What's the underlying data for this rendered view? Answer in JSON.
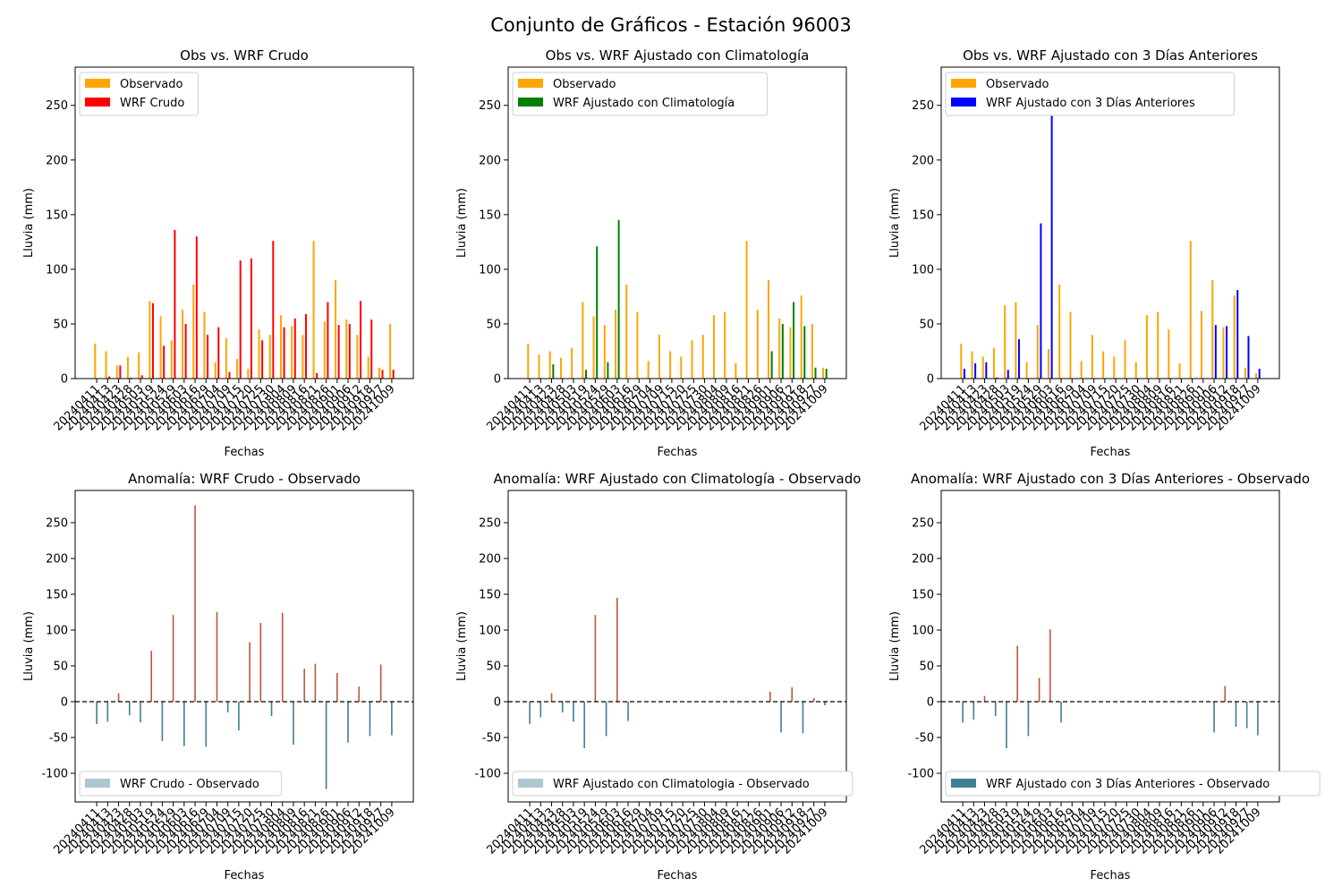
{
  "figure": {
    "title": "Conjunto de Gráficos - Estación 96003"
  },
  "colors": {
    "observed": "#FFA500",
    "wrf_raw": "#FF0000",
    "wrf_clim": "#008000",
    "wrf_3d": "#0000FF",
    "anom_pos": "#C0553A",
    "anom_neg": "#3F7F93",
    "anom_legend_light": "#AEC7D0",
    "anom_legend_dark": "#3F7F93"
  },
  "date_ticks": [
    "20240411",
    "20240413",
    "20240423",
    "20240428",
    "20240503",
    "20240519",
    "20240524",
    "20240529",
    "20240603",
    "20240616",
    "20240629",
    "20240704",
    "20240709",
    "20240715",
    "20240720",
    "20240725",
    "20240730",
    "20240804",
    "20240809",
    "20240816",
    "20240821",
    "20240826",
    "20240901",
    "20240906",
    "20240912",
    "20240918",
    "20240927",
    "20241009"
  ],
  "chart_data": [
    {
      "type": "bar",
      "title": "Obs vs. WRF Crudo",
      "xlabel": "Fechas",
      "ylabel": "Lluvia (mm)",
      "ylim": [
        0,
        285
      ],
      "yticks": [
        0,
        50,
        100,
        150,
        200,
        250
      ],
      "legend_position": "top-left",
      "x": [
        "20240411",
        "20240413",
        "20240423",
        "20240428",
        "20240503",
        "20240519",
        "20240524",
        "20240529",
        "20240603",
        "20240616",
        "20240629",
        "20240704",
        "20240709",
        "20240715",
        "20240720",
        "20240725",
        "20240730",
        "20240804",
        "20240809",
        "20240816",
        "20240821",
        "20240826",
        "20240901",
        "20240906",
        "20240912",
        "20240918",
        "20240927",
        "20241009"
      ],
      "series": [
        {
          "name": "Observado",
          "color_key": "observed",
          "values": [
            32,
            25,
            12,
            20,
            24,
            71,
            57,
            35,
            63,
            86,
            61,
            15,
            37,
            18,
            9,
            45,
            40,
            58,
            48,
            40,
            126,
            52,
            90,
            54,
            40,
            20,
            10,
            50
          ]
        },
        {
          "name": "WRF Crudo",
          "color_key": "wrf_raw",
          "values": [
            0,
            2,
            12,
            1,
            3,
            69,
            30,
            136,
            50,
            130,
            40,
            47,
            6,
            108,
            110,
            35,
            126,
            47,
            55,
            59,
            5,
            70,
            49,
            50,
            71,
            54,
            8,
            8
          ]
        }
      ]
    },
    {
      "type": "bar",
      "title": "Obs vs. WRF Ajustado con Climatología",
      "xlabel": "Fechas",
      "ylabel": "Lluvia (mm)",
      "ylim": [
        0,
        285
      ],
      "yticks": [
        0,
        50,
        100,
        150,
        200,
        250
      ],
      "legend_position": "top-left",
      "x": [
        "20240411",
        "20240413",
        "20240423",
        "20240428",
        "20240503",
        "20240519",
        "20240524",
        "20240529",
        "20240603",
        "20240616",
        "20240629",
        "20240704",
        "20240709",
        "20240715",
        "20240720",
        "20240725",
        "20240730",
        "20240804",
        "20240809",
        "20240816",
        "20240821",
        "20240826",
        "20240901",
        "20240906",
        "20240912",
        "20240918",
        "20240927",
        "20241009"
      ],
      "series": [
        {
          "name": "Observado",
          "color_key": "observed",
          "values": [
            32,
            22,
            25,
            19,
            28,
            70,
            57,
            49,
            63,
            86,
            61,
            16,
            40,
            25,
            20,
            35,
            40,
            58,
            61,
            14,
            126,
            63,
            90,
            55,
            47,
            76,
            50,
            10
          ]
        },
        {
          "name": "WRF Ajustado con Climatología",
          "color_key": "wrf_clim",
          "values": [
            0,
            0,
            13,
            0,
            0,
            8,
            121,
            15,
            145,
            0,
            0,
            0,
            0,
            0,
            0,
            0,
            0,
            0,
            0,
            0,
            0,
            0,
            25,
            50,
            70,
            48,
            10,
            9
          ]
        }
      ]
    },
    {
      "type": "bar",
      "title": "Obs vs. WRF Ajustado con 3 Días Anteriores",
      "xlabel": "Fechas",
      "ylabel": "Lluvia (mm)",
      "ylim": [
        0,
        285
      ],
      "yticks": [
        0,
        50,
        100,
        150,
        200,
        250
      ],
      "legend_position": "top-left",
      "x": [
        "20240411",
        "20240413",
        "20240423",
        "20240428",
        "20240503",
        "20240519",
        "20240524",
        "20240529",
        "20240603",
        "20240616",
        "20240629",
        "20240704",
        "20240709",
        "20240715",
        "20240720",
        "20240725",
        "20240730",
        "20240804",
        "20240809",
        "20240816",
        "20240821",
        "20240826",
        "20240901",
        "20240906",
        "20240912",
        "20240918",
        "20240927",
        "20241009"
      ],
      "series": [
        {
          "name": "Observado",
          "color_key": "observed",
          "values": [
            32,
            25,
            20,
            28,
            67,
            70,
            15,
            49,
            27,
            86,
            61,
            16,
            40,
            25,
            20,
            35,
            15,
            58,
            61,
            45,
            14,
            126,
            62,
            90,
            47,
            76,
            10,
            5
          ]
        },
        {
          "name": "WRF Ajustado con 3 Días Anteriores",
          "color_key": "wrf_3d",
          "values": [
            9,
            14,
            15,
            1,
            8,
            36,
            0,
            142,
            270,
            0,
            0,
            0,
            0,
            0,
            0,
            0,
            0,
            0,
            0,
            0,
            0,
            0,
            0,
            49,
            48,
            81,
            39,
            9
          ]
        }
      ]
    },
    {
      "type": "bar",
      "title": "Anomalía: WRF Crudo - Observado",
      "xlabel": "Fechas",
      "ylabel": "Lluvia (mm)",
      "ylim": [
        -140,
        295
      ],
      "yticks": [
        -100,
        -50,
        0,
        50,
        100,
        150,
        200,
        250
      ],
      "zero_line": true,
      "legend_position": "bottom-left",
      "legend_swatch": "anom_legend_light",
      "x": [
        "20240411",
        "20240413",
        "20240423",
        "20240428",
        "20240503",
        "20240519",
        "20240524",
        "20240529",
        "20240603",
        "20240616",
        "20240629",
        "20240704",
        "20240709",
        "20240715",
        "20240720",
        "20240725",
        "20240730",
        "20240804",
        "20240809",
        "20240816",
        "20240821",
        "20240826",
        "20240901",
        "20240906",
        "20240912",
        "20240918",
        "20240927",
        "20241009"
      ],
      "series": [
        {
          "name": "WRF Crudo - Observado",
          "values": [
            -31,
            -28,
            12,
            -19,
            -29,
            71,
            -55,
            121,
            -62,
            274,
            -63,
            125,
            -15,
            -40,
            83,
            110,
            -20,
            124,
            -60,
            46,
            53,
            -122,
            40,
            -57,
            21,
            -48,
            52,
            -47
          ]
        }
      ]
    },
    {
      "type": "bar",
      "title": "Anomalía: WRF Ajustado con Climatología - Observado",
      "xlabel": "Fechas",
      "ylabel": "Lluvia (mm)",
      "ylim": [
        -140,
        295
      ],
      "yticks": [
        -100,
        -50,
        0,
        50,
        100,
        150,
        200,
        250
      ],
      "zero_line": true,
      "legend_position": "bottom-left",
      "legend_swatch": "anom_legend_light",
      "x": [
        "20240411",
        "20240413",
        "20240423",
        "20240428",
        "20240503",
        "20240519",
        "20240524",
        "20240529",
        "20240603",
        "20240616",
        "20240629",
        "20240704",
        "20240709",
        "20240715",
        "20240720",
        "20240725",
        "20240730",
        "20240804",
        "20240809",
        "20240816",
        "20240821",
        "20240826",
        "20240901",
        "20240906",
        "20240912",
        "20240918",
        "20240927",
        "20241009"
      ],
      "series": [
        {
          "name": "WRF Ajustado con Climatologia - Observado",
          "values": [
            -31,
            -22,
            12,
            -15,
            -28,
            -65,
            121,
            -48,
            145,
            -27,
            0,
            0,
            0,
            0,
            0,
            0,
            0,
            0,
            0,
            0,
            0,
            0,
            14,
            -43,
            20,
            -44,
            5,
            -5
          ]
        }
      ]
    },
    {
      "type": "bar",
      "title": "Anomalía: WRF Ajustado con 3 Días Anteriores - Observado",
      "xlabel": "Fechas",
      "ylabel": "Lluvia (mm)",
      "ylim": [
        -140,
        295
      ],
      "yticks": [
        -100,
        -50,
        0,
        50,
        100,
        150,
        200,
        250
      ],
      "zero_line": true,
      "legend_position": "bottom-left",
      "legend_swatch": "anom_legend_dark",
      "x": [
        "20240411",
        "20240413",
        "20240423",
        "20240428",
        "20240503",
        "20240519",
        "20240524",
        "20240529",
        "20240603",
        "20240616",
        "20240629",
        "20240704",
        "20240709",
        "20240715",
        "20240720",
        "20240725",
        "20240730",
        "20240804",
        "20240809",
        "20240816",
        "20240821",
        "20240826",
        "20240901",
        "20240906",
        "20240912",
        "20240918",
        "20240927",
        "20241009"
      ],
      "series": [
        {
          "name": "WRF Ajustado con 3 Días Anteriores - Observado",
          "values": [
            -29,
            -25,
            8,
            -20,
            -65,
            78,
            -48,
            33,
            101,
            -29,
            0,
            0,
            0,
            0,
            0,
            0,
            0,
            0,
            0,
            0,
            0,
            0,
            0,
            -43,
            22,
            -35,
            -37,
            -47
          ]
        }
      ]
    }
  ]
}
